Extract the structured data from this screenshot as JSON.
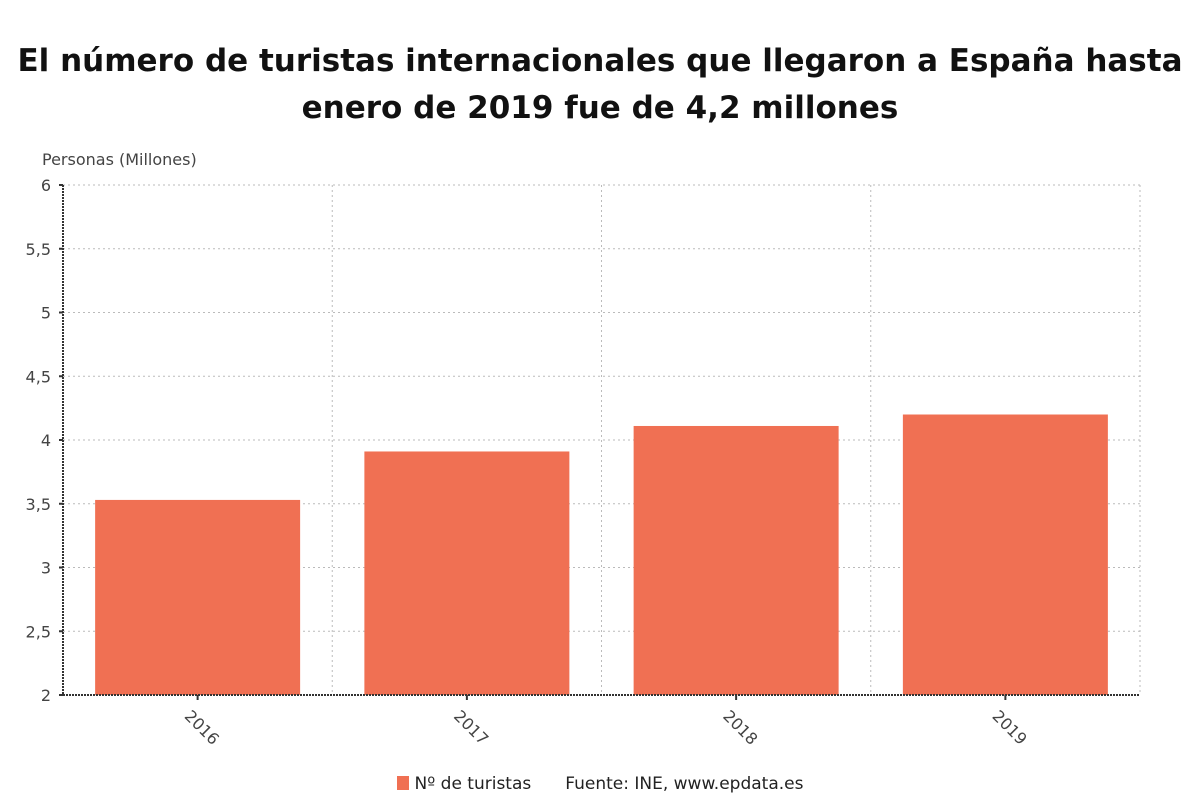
{
  "title_lines": [
    "El número de turistas internacionales que llegaron a España hasta",
    "enero de 2019 fue de 4,2 millones"
  ],
  "legend": {
    "series_label": "Nº de turistas",
    "source": "Fuente: INE, www.epdata.es"
  },
  "chart_data": {
    "type": "bar",
    "title": "El número de turistas internacionales que llegaron a España hasta enero de 2019 fue de 4,2 millones",
    "xlabel": "",
    "ylabel": "Personas (Millones)",
    "categories": [
      "2016",
      "2017",
      "2018",
      "2019"
    ],
    "series": [
      {
        "name": "Nº de turistas",
        "color": "#f07053",
        "values": [
          3.53,
          3.91,
          4.11,
          4.2
        ]
      }
    ],
    "ylim": [
      2,
      6
    ],
    "yticks": [
      2,
      2.5,
      3,
      3.5,
      4,
      4.5,
      5,
      5.5,
      6
    ],
    "ytick_labels": [
      "2",
      "2,5",
      "3",
      "3,5",
      "4",
      "4,5",
      "5",
      "5,5",
      "6"
    ],
    "xtick_rotation": "45deg",
    "grid": true,
    "legend_position": "bottom-center",
    "source": "Fuente: INE, www.epdata.es"
  }
}
